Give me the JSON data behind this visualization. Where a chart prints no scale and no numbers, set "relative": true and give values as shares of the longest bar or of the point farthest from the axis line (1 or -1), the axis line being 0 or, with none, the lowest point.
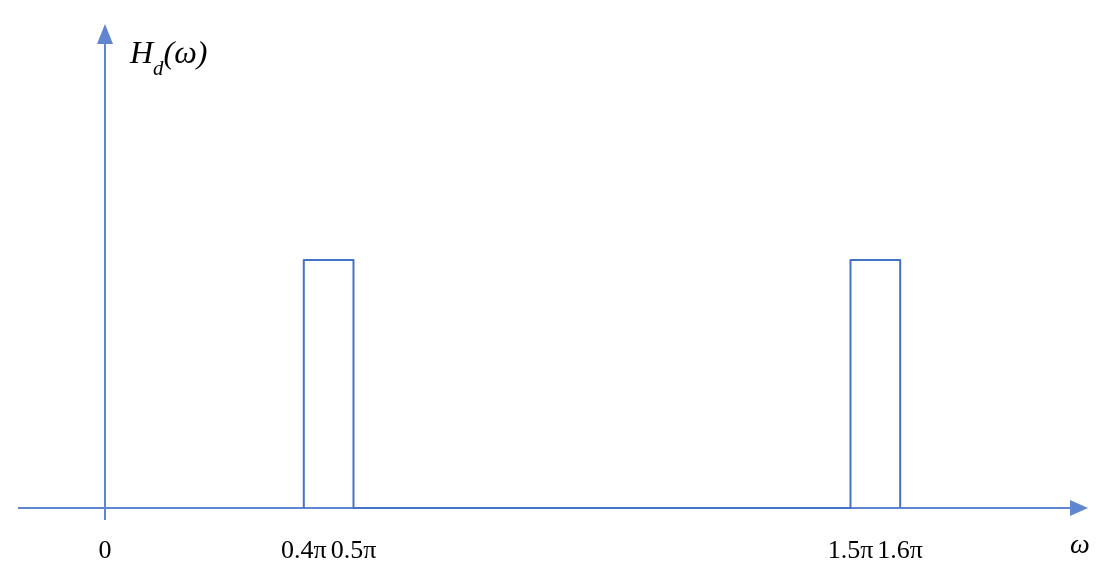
{
  "chart_data": {
    "type": "line",
    "relative": true,
    "annotations": [
      "H$_{d}$(ω)"
    ],
    "xlabel": "ω",
    "color": "#4472c4",
    "x": [
      1.2566,
      1.2566,
      1.5708,
      1.5708,
      4.7124,
      4.7124,
      5.0265,
      5.0265
    ],
    "values": [
      0,
      1,
      1,
      0,
      0,
      1,
      1,
      0
    ],
    "xlim": [
      0,
      6.1
    ],
    "xticks": [
      0,
      {
        "value": 1.2566,
        "label": "0.4π"
      },
      {
        "value": 1.5708,
        "label": "0.5π"
      },
      {
        "value": 4.7124,
        "label": "1.5π"
      },
      {
        "value": 5.0265,
        "label": "1.6π"
      }
    ]
  }
}
